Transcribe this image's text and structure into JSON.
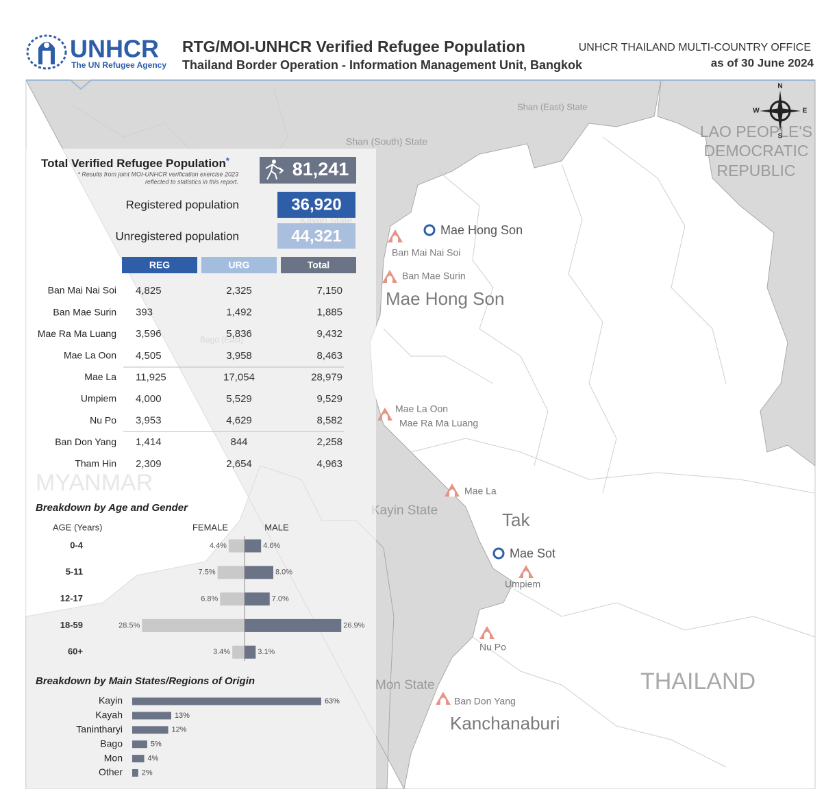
{
  "header": {
    "logo_name": "UNHCR",
    "logo_sub": "The UN Refugee Agency",
    "title": "RTG/MOI-UNHCR Verified Refugee Population",
    "subtitle": "Thailand Border Operation - Information Management Unit, Bangkok",
    "office": "UNHCR THAILAND MULTI-COUNTRY OFFICE",
    "date": "as of 30 June 2024"
  },
  "summary": {
    "total_label": "Total Verified Refugee Population",
    "asterisk": "*",
    "note": [
      "* Results from joint MOI-UNHCR verification exercise 2023",
      "reflected to statistics in this report."
    ],
    "total": "81,241",
    "registered_label": "Registered population",
    "registered": "36,920",
    "unregistered_label": "Unregistered population",
    "unregistered": "44,321"
  },
  "table": {
    "columns": [
      "REG",
      "URG",
      "Total"
    ],
    "rows": [
      [
        "Ban Mai Nai Soi",
        "4,825",
        "2,325",
        "7,150"
      ],
      [
        "Ban Mae Surin",
        "393",
        "1,492",
        "1,885"
      ],
      [
        "Mae Ra Ma Luang",
        "3,596",
        "5,836",
        "9,432"
      ],
      [
        "Mae La Oon",
        "4,505",
        "3,958",
        "8,463"
      ],
      [
        "Mae La",
        "11,925",
        "17,054",
        "28,979"
      ],
      [
        "Umpiem",
        "4,000",
        "5,529",
        "9,529"
      ],
      [
        "Nu Po",
        "3,953",
        "4,629",
        "8,582"
      ],
      [
        "Ban Don Yang",
        "1,414",
        "844",
        "2,258"
      ],
      [
        "Tham Hin",
        "2,309",
        "2,654",
        "4,963"
      ]
    ]
  },
  "chart_data": [
    {
      "type": "butterfly",
      "title": "Breakdown by Age and Gender",
      "axis_label": "AGE (Years)",
      "categories": [
        "0-4",
        "5-11",
        "12-17",
        "18-59",
        "60+"
      ],
      "series": [
        {
          "name": "FEMALE",
          "color": "#c9c9c9",
          "values": [
            4.4,
            7.5,
            6.8,
            28.5,
            3.4
          ],
          "value_labels": [
            "4.4%",
            "7.5%",
            "6.8%",
            "28.5%",
            "3.4%"
          ]
        },
        {
          "name": "MALE",
          "color": "#6b7386",
          "values": [
            4.6,
            8.0,
            7.0,
            26.9,
            3.1
          ],
          "value_labels": [
            "4.6%",
            "8.0%",
            "7.0%",
            "26.9%",
            "3.1%"
          ]
        }
      ]
    },
    {
      "type": "bar",
      "title": "Breakdown by Main States/Regions of Origin",
      "categories": [
        "Kayin",
        "Kayah",
        "Tanintharyi",
        "Bago",
        "Mon",
        "Other"
      ],
      "values": [
        63,
        13,
        12,
        5,
        4,
        2
      ],
      "value_labels": [
        "63%",
        "13%",
        "12%",
        "5%",
        "4%",
        "2%"
      ],
      "color": "#6b7386"
    }
  ],
  "map": {
    "regions": [
      "Shan (East) State",
      "Shan (South) State",
      "Kayah State",
      "Bago (East)",
      "Kayin State",
      "Mon State"
    ],
    "provinces": [
      "Mae Hong Son",
      "Tak",
      "Kanchanaburi"
    ],
    "countries": [
      "MYANMAR",
      "THAILAND"
    ],
    "lao": [
      "LAO PEOPLE'S",
      "DEMOCRATIC",
      "REPUBLIC"
    ],
    "towns": [
      "Mae Hong Son",
      "Mae Sot"
    ],
    "camps": [
      "Ban Mai Nai Soi",
      "Ban Mae Surin",
      "Mae La Oon",
      "Mae Ra Ma Luang",
      "Mae La",
      "Umpiem",
      "Nu Po",
      "Ban Don Yang"
    ],
    "compass": [
      "N",
      "E",
      "S",
      "W"
    ]
  }
}
